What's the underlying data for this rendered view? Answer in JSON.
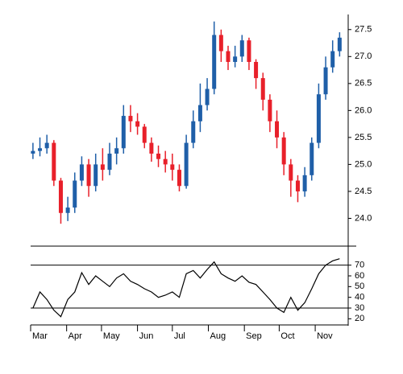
{
  "chart_data": [
    {
      "type": "candlestick",
      "x": [
        2,
        8,
        14,
        20,
        26,
        32,
        38,
        44,
        50,
        56,
        62,
        68,
        74,
        80,
        86,
        92,
        98,
        104,
        110,
        116,
        122,
        128,
        134,
        140,
        146,
        152,
        158,
        164,
        170,
        176,
        182,
        188,
        194,
        200,
        206,
        212,
        218,
        224,
        230,
        236,
        242,
        248,
        254,
        260,
        266
      ],
      "open": [
        25.2,
        25.25,
        25.3,
        25.4,
        24.7,
        24.1,
        24.2,
        24.7,
        25.0,
        24.6,
        25.0,
        24.9,
        25.2,
        25.3,
        25.9,
        25.8,
        25.7,
        25.4,
        25.2,
        25.1,
        25.0,
        24.9,
        24.6,
        25.4,
        25.8,
        26.1,
        26.4,
        27.4,
        27.1,
        26.9,
        27.0,
        27.3,
        26.9,
        26.6,
        26.2,
        25.8,
        25.5,
        25.0,
        24.7,
        24.5,
        24.8,
        25.4,
        26.3,
        26.8,
        27.1
      ],
      "high": [
        25.4,
        25.5,
        25.55,
        25.45,
        24.75,
        24.4,
        24.85,
        25.15,
        25.1,
        25.2,
        25.3,
        25.4,
        25.5,
        26.1,
        26.1,
        25.95,
        25.75,
        25.5,
        25.35,
        25.25,
        25.2,
        25.0,
        25.55,
        26.0,
        26.5,
        26.6,
        27.65,
        27.5,
        27.2,
        27.2,
        27.4,
        27.35,
        26.95,
        26.7,
        26.3,
        26.0,
        25.6,
        25.1,
        24.8,
        24.95,
        25.5,
        26.5,
        27.0,
        27.3,
        27.45
      ],
      "low": [
        25.1,
        25.15,
        25.2,
        24.6,
        23.9,
        23.95,
        24.1,
        24.6,
        24.4,
        24.5,
        24.7,
        24.8,
        25.0,
        25.2,
        25.6,
        25.55,
        25.3,
        25.05,
        24.95,
        24.85,
        24.7,
        24.5,
        24.55,
        25.3,
        25.6,
        26.0,
        26.3,
        26.9,
        26.75,
        26.8,
        26.9,
        26.75,
        26.4,
        26.0,
        25.6,
        25.3,
        24.8,
        24.4,
        24.3,
        24.4,
        24.7,
        25.3,
        26.2,
        26.7,
        27.0
      ],
      "close": [
        25.25,
        25.3,
        25.4,
        24.7,
        24.1,
        24.2,
        24.7,
        25.0,
        24.6,
        25.0,
        24.9,
        25.2,
        25.3,
        25.9,
        25.8,
        25.7,
        25.4,
        25.2,
        25.1,
        25.0,
        24.9,
        24.6,
        25.4,
        25.8,
        26.1,
        26.4,
        27.4,
        27.1,
        26.9,
        27.0,
        27.3,
        26.9,
        26.6,
        26.2,
        25.8,
        25.5,
        25.0,
        24.7,
        24.5,
        24.8,
        25.4,
        26.3,
        26.8,
        27.1,
        27.35
      ],
      "up_color": "#1f5fa8",
      "down_color": "#e8202a",
      "xlim": [
        0,
        272
      ],
      "ylim": [
        23.5,
        27.75
      ],
      "yticks": [
        {
          "value": 24,
          "label": "24.0"
        },
        24.5,
        {
          "value": 25,
          "label": "25.0"
        },
        25.5,
        {
          "value": 26,
          "label": "26.0"
        },
        26.5,
        {
          "value": 27,
          "label": "27.0"
        },
        27.5
      ]
    },
    {
      "type": "line",
      "x": [
        2,
        8,
        14,
        20,
        26,
        32,
        38,
        44,
        50,
        56,
        62,
        68,
        74,
        80,
        86,
        92,
        98,
        104,
        110,
        116,
        122,
        128,
        134,
        140,
        146,
        152,
        158,
        164,
        170,
        176,
        182,
        188,
        194,
        200,
        206,
        212,
        218,
        224,
        230,
        236,
        242,
        248,
        254,
        260,
        266
      ],
      "values": [
        30,
        45,
        38,
        28,
        22,
        38,
        45,
        63,
        52,
        60,
        55,
        50,
        58,
        62,
        55,
        52,
        48,
        45,
        40,
        42,
        45,
        40,
        62,
        65,
        58,
        66,
        73,
        62,
        58,
        55,
        60,
        54,
        52,
        45,
        38,
        30,
        26,
        40,
        28,
        35,
        48,
        62,
        70,
        74,
        76
      ],
      "color": "#000000",
      "levels": [
        30,
        70
      ],
      "xlim": [
        0,
        272
      ],
      "ylim": [
        15,
        87
      ],
      "yticks": [
        20,
        30,
        40,
        50,
        60,
        70
      ],
      "xticks": [
        {
          "value": 0,
          "label": "Mar"
        },
        {
          "value": 31,
          "label": "Apr"
        },
        {
          "value": 61,
          "label": "May"
        },
        {
          "value": 92,
          "label": "Jun"
        },
        {
          "value": 122,
          "label": "Jul"
        },
        {
          "value": 153,
          "label": "Aug"
        },
        {
          "value": 184,
          "label": "Sep"
        },
        {
          "value": 214,
          "label": "Oct"
        },
        {
          "value": 245,
          "label": "Nov"
        }
      ]
    }
  ]
}
